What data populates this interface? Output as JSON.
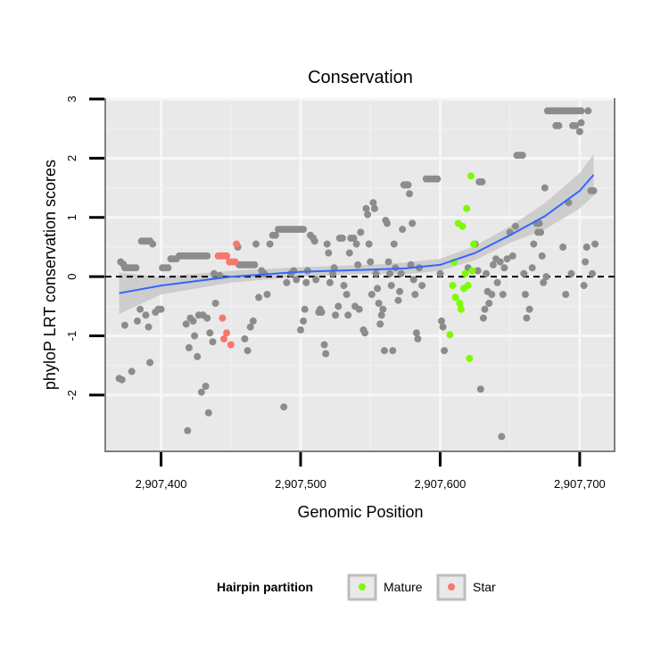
{
  "chart_data": {
    "type": "scatter",
    "title": "Conservation",
    "xlabel": "Genomic Position",
    "ylabel": "phyloP LRT conservation scores",
    "xlim": [
      2907360,
      2907725
    ],
    "ylim": [
      -2.95,
      3.0
    ],
    "x_ticks": [
      2907400,
      2907500,
      2907600,
      2907700
    ],
    "x_tick_labels": [
      "2,907,400",
      "2,907,500",
      "2,907,600",
      "2,907,700"
    ],
    "y_ticks": [
      -2,
      -1,
      0,
      1,
      2,
      3
    ],
    "y_tick_labels": [
      "-2",
      "-1",
      "0",
      "1",
      "2",
      "3"
    ],
    "grid": true,
    "reference_line": {
      "y": 0,
      "style": "dashed",
      "color": "#000000"
    },
    "legend": {
      "position": "bottom",
      "title": "Hairpin partition",
      "entries": [
        {
          "label": "Mature",
          "color": "#7cfc00"
        },
        {
          "label": "Star",
          "color": "#f8766d"
        }
      ]
    },
    "colors": {
      "background": "#e9e9e9",
      "other_points": "#8c8c8c",
      "mature": "#7cfc00",
      "star": "#f8766d",
      "smooth_line": "#3366ff",
      "confidence_band": "#c8c8c8"
    },
    "series": [
      {
        "name": "",
        "color": "#8c8c8c",
        "points": [
          [
            2907370,
            -1.72
          ],
          [
            2907372,
            -1.74
          ],
          [
            2907371,
            0.25
          ],
          [
            2907373,
            0.21
          ],
          [
            2907374,
            0.15
          ],
          [
            2907376,
            0.15
          ],
          [
            2907378,
            0.15
          ],
          [
            2907380,
            0.15
          ],
          [
            2907382,
            0.15
          ],
          [
            2907374,
            -0.82
          ],
          [
            2907379,
            -1.6
          ],
          [
            2907383,
            -0.75
          ],
          [
            2907385,
            -0.55
          ],
          [
            2907386,
            0.6
          ],
          [
            2907388,
            0.6
          ],
          [
            2907390,
            0.6
          ],
          [
            2907392,
            0.6
          ],
          [
            2907389,
            -0.65
          ],
          [
            2907391,
            -0.85
          ],
          [
            2907392,
            -1.45
          ],
          [
            2907394,
            0.55
          ],
          [
            2907396,
            -0.6
          ],
          [
            2907398,
            -0.55
          ],
          [
            2907400,
            -0.55
          ],
          [
            2907401,
            0.15
          ],
          [
            2907403,
            0.15
          ],
          [
            2907405,
            0.15
          ],
          [
            2907407,
            0.3
          ],
          [
            2907409,
            0.3
          ],
          [
            2907411,
            0.3
          ],
          [
            2907413,
            0.35
          ],
          [
            2907415,
            0.35
          ],
          [
            2907417,
            0.35
          ],
          [
            2907419,
            0.35
          ],
          [
            2907421,
            0.35
          ],
          [
            2907423,
            0.35
          ],
          [
            2907425,
            0.35
          ],
          [
            2907427,
            0.35
          ],
          [
            2907429,
            0.35
          ],
          [
            2907431,
            0.35
          ],
          [
            2907433,
            0.35
          ],
          [
            2907418,
            -0.8
          ],
          [
            2907419,
            -2.6
          ],
          [
            2907420,
            -1.2
          ],
          [
            2907421,
            -0.7
          ],
          [
            2907423,
            -0.75
          ],
          [
            2907424,
            -1.0
          ],
          [
            2907426,
            -1.35
          ],
          [
            2907427,
            -0.65
          ],
          [
            2907429,
            -1.95
          ],
          [
            2907430,
            -0.65
          ],
          [
            2907432,
            -1.85
          ],
          [
            2907433,
            -0.7
          ],
          [
            2907434,
            -2.3
          ],
          [
            2907435,
            -0.95
          ],
          [
            2907437,
            -1.1
          ],
          [
            2907438,
            0.05
          ],
          [
            2907439,
            -0.45
          ],
          [
            2907442,
            0.02
          ],
          [
            2907455,
            0.5
          ],
          [
            2907456,
            0.2
          ],
          [
            2907457,
            0.2
          ],
          [
            2907459,
            0.2
          ],
          [
            2907461,
            0.2
          ],
          [
            2907463,
            0.2
          ],
          [
            2907465,
            0.2
          ],
          [
            2907467,
            0.2
          ],
          [
            2907460,
            -1.05
          ],
          [
            2907462,
            -1.25
          ],
          [
            2907464,
            -0.85
          ],
          [
            2907466,
            -0.75
          ],
          [
            2907468,
            0.55
          ],
          [
            2907470,
            -0.35
          ],
          [
            2907472,
            0.1
          ],
          [
            2907474,
            0.05
          ],
          [
            2907476,
            -0.3
          ],
          [
            2907478,
            0.55
          ],
          [
            2907480,
            0.7
          ],
          [
            2907482,
            0.7
          ],
          [
            2907484,
            0.8
          ],
          [
            2907486,
            0.8
          ],
          [
            2907488,
            0.8
          ],
          [
            2907490,
            0.8
          ],
          [
            2907492,
            0.8
          ],
          [
            2907494,
            0.8
          ],
          [
            2907496,
            0.8
          ],
          [
            2907498,
            0.8
          ],
          [
            2907500,
            0.8
          ],
          [
            2907502,
            0.8
          ],
          [
            2907488,
            -2.2
          ],
          [
            2907490,
            -0.1
          ],
          [
            2907493,
            0.05
          ],
          [
            2907495,
            0.1
          ],
          [
            2907497,
            -0.05
          ],
          [
            2907500,
            -0.9
          ],
          [
            2907502,
            -0.75
          ],
          [
            2907503,
            -0.55
          ],
          [
            2907504,
            -0.1
          ],
          [
            2907505,
            0.1
          ],
          [
            2907507,
            0.7
          ],
          [
            2907509,
            0.65
          ],
          [
            2907510,
            0.6
          ],
          [
            2907511,
            -0.05
          ],
          [
            2907513,
            -0.6
          ],
          [
            2907514,
            -0.55
          ],
          [
            2907515,
            -0.6
          ],
          [
            2907517,
            -1.15
          ],
          [
            2907518,
            -1.3
          ],
          [
            2907519,
            0.55
          ],
          [
            2907520,
            0.4
          ],
          [
            2907521,
            -0.1
          ],
          [
            2907523,
            0.05
          ],
          [
            2907524,
            0.15
          ],
          [
            2907525,
            -0.65
          ],
          [
            2907527,
            -0.5
          ],
          [
            2907528,
            0.65
          ],
          [
            2907530,
            0.65
          ],
          [
            2907531,
            -0.15
          ],
          [
            2907533,
            -0.3
          ],
          [
            2907534,
            -0.65
          ],
          [
            2907535,
            0.4
          ],
          [
            2907536,
            0.65
          ],
          [
            2907538,
            0.65
          ],
          [
            2907539,
            -0.5
          ],
          [
            2907540,
            0.55
          ],
          [
            2907541,
            0.2
          ],
          [
            2907542,
            -0.55
          ],
          [
            2907543,
            0.75
          ],
          [
            2907545,
            -0.9
          ],
          [
            2907546,
            -0.95
          ],
          [
            2907547,
            1.15
          ],
          [
            2907548,
            1.05
          ],
          [
            2907549,
            0.55
          ],
          [
            2907550,
            0.25
          ],
          [
            2907551,
            -0.3
          ],
          [
            2907552,
            1.25
          ],
          [
            2907553,
            1.15
          ],
          [
            2907554,
            0.05
          ],
          [
            2907555,
            -0.2
          ],
          [
            2907556,
            -0.45
          ],
          [
            2907557,
            -0.8
          ],
          [
            2907558,
            -0.65
          ],
          [
            2907559,
            -0.55
          ],
          [
            2907560,
            -1.25
          ],
          [
            2907561,
            0.95
          ],
          [
            2907562,
            0.9
          ],
          [
            2907563,
            0.25
          ],
          [
            2907564,
            0.05
          ],
          [
            2907565,
            -0.15
          ],
          [
            2907566,
            -1.25
          ],
          [
            2907567,
            0.55
          ],
          [
            2907568,
            0.15
          ],
          [
            2907570,
            -0.4
          ],
          [
            2907571,
            -0.25
          ],
          [
            2907572,
            0.05
          ],
          [
            2907573,
            0.8
          ],
          [
            2907574,
            1.55
          ],
          [
            2907575,
            1.55
          ],
          [
            2907576,
            1.55
          ],
          [
            2907577,
            1.55
          ],
          [
            2907578,
            1.4
          ],
          [
            2907579,
            0.2
          ],
          [
            2907580,
            0.9
          ],
          [
            2907581,
            -0.05
          ],
          [
            2907582,
            -0.3
          ],
          [
            2907583,
            -0.95
          ],
          [
            2907584,
            -1.05
          ],
          [
            2907585,
            0.15
          ],
          [
            2907587,
            -0.15
          ],
          [
            2907590,
            1.65
          ],
          [
            2907592,
            1.65
          ],
          [
            2907594,
            1.65
          ],
          [
            2907596,
            1.65
          ],
          [
            2907598,
            1.65
          ],
          [
            2907600,
            0.05
          ],
          [
            2907601,
            -0.75
          ],
          [
            2907602,
            -0.85
          ],
          [
            2907603,
            -1.25
          ],
          [
            2907620,
            0.15
          ],
          [
            2907625,
            0.55
          ],
          [
            2907627,
            0.1
          ],
          [
            2907628,
            1.6
          ],
          [
            2907630,
            1.6
          ],
          [
            2907629,
            -1.9
          ],
          [
            2907631,
            -0.7
          ],
          [
            2907632,
            -0.55
          ],
          [
            2907633,
            0.05
          ],
          [
            2907634,
            -0.25
          ],
          [
            2907635,
            -0.45
          ],
          [
            2907637,
            -0.3
          ],
          [
            2907638,
            0.2
          ],
          [
            2907640,
            0.3
          ],
          [
            2907641,
            -0.1
          ],
          [
            2907643,
            0.25
          ],
          [
            2907644,
            -2.7
          ],
          [
            2907645,
            -0.3
          ],
          [
            2907646,
            0.15
          ],
          [
            2907648,
            0.3
          ],
          [
            2907650,
            0.75
          ],
          [
            2907652,
            0.35
          ],
          [
            2907654,
            0.85
          ],
          [
            2907655,
            2.05
          ],
          [
            2907657,
            2.05
          ],
          [
            2907659,
            2.05
          ],
          [
            2907660,
            0.05
          ],
          [
            2907661,
            -0.3
          ],
          [
            2907662,
            -0.7
          ],
          [
            2907664,
            -0.55
          ],
          [
            2907666,
            0.15
          ],
          [
            2907667,
            0.55
          ],
          [
            2907669,
            0.9
          ],
          [
            2907670,
            0.75
          ],
          [
            2907671,
            0.9
          ],
          [
            2907672,
            0.75
          ],
          [
            2907673,
            0.35
          ],
          [
            2907674,
            -0.1
          ],
          [
            2907675,
            1.5
          ],
          [
            2907676,
            0.0
          ],
          [
            2907677,
            2.8
          ],
          [
            2907679,
            2.8
          ],
          [
            2907681,
            2.8
          ],
          [
            2907683,
            2.8
          ],
          [
            2907685,
            2.8
          ],
          [
            2907687,
            2.8
          ],
          [
            2907689,
            2.8
          ],
          [
            2907691,
            2.8
          ],
          [
            2907693,
            2.8
          ],
          [
            2907695,
            2.8
          ],
          [
            2907697,
            2.8
          ],
          [
            2907699,
            2.8
          ],
          [
            2907701,
            2.8
          ],
          [
            2907683,
            2.55
          ],
          [
            2907685,
            2.55
          ],
          [
            2907688,
            0.5
          ],
          [
            2907690,
            -0.3
          ],
          [
            2907692,
            1.25
          ],
          [
            2907694,
            0.05
          ],
          [
            2907695,
            2.55
          ],
          [
            2907697,
            2.55
          ],
          [
            2907700,
            2.45
          ],
          [
            2907701,
            2.6
          ],
          [
            2907703,
            -0.15
          ],
          [
            2907704,
            0.25
          ],
          [
            2907705,
            0.5
          ],
          [
            2907706,
            2.8
          ],
          [
            2907708,
            1.45
          ],
          [
            2907710,
            1.45
          ],
          [
            2907709,
            0.05
          ],
          [
            2907711,
            0.55
          ]
        ]
      },
      {
        "name": "Mature",
        "color": "#7cfc00",
        "points": [
          [
            2907607,
            -0.98
          ],
          [
            2907609,
            -0.15
          ],
          [
            2907610,
            0.25
          ],
          [
            2907611,
            -0.35
          ],
          [
            2907613,
            0.9
          ],
          [
            2907614,
            -0.45
          ],
          [
            2907615,
            -0.55
          ],
          [
            2907616,
            0.85
          ],
          [
            2907617,
            -0.2
          ],
          [
            2907618,
            0.05
          ],
          [
            2907619,
            1.15
          ],
          [
            2907620,
            -0.15
          ],
          [
            2907621,
            -1.38
          ],
          [
            2907622,
            1.7
          ],
          [
            2907623,
            0.1
          ],
          [
            2907624,
            0.55
          ]
        ]
      },
      {
        "name": "Star",
        "color": "#f8766d",
        "points": [
          [
            2907441,
            0.35
          ],
          [
            2907443,
            0.35
          ],
          [
            2907445,
            0.35
          ],
          [
            2907447,
            0.35
          ],
          [
            2907449,
            0.25
          ],
          [
            2907451,
            0.25
          ],
          [
            2907453,
            0.25
          ],
          [
            2907454,
            0.55
          ],
          [
            2907444,
            -0.7
          ],
          [
            2907445,
            -1.05
          ],
          [
            2907447,
            -0.95
          ],
          [
            2907450,
            -1.15
          ]
        ]
      }
    ],
    "smooth": {
      "x": [
        2907370,
        2907400,
        2907450,
        2907500,
        2907550,
        2907575,
        2907600,
        2907625,
        2907650,
        2907675,
        2907700,
        2907710
      ],
      "y": [
        -0.28,
        -0.15,
        0.0,
        0.08,
        0.12,
        0.14,
        0.2,
        0.4,
        0.7,
        1.02,
        1.45,
        1.72
      ],
      "band_low": [
        -0.63,
        -0.3,
        -0.1,
        0.0,
        0.05,
        0.04,
        0.1,
        0.28,
        0.57,
        0.8,
        1.15,
        1.37
      ],
      "band_high": [
        0.07,
        0.0,
        0.1,
        0.16,
        0.2,
        0.24,
        0.3,
        0.52,
        0.85,
        1.24,
        1.75,
        2.07
      ]
    }
  }
}
